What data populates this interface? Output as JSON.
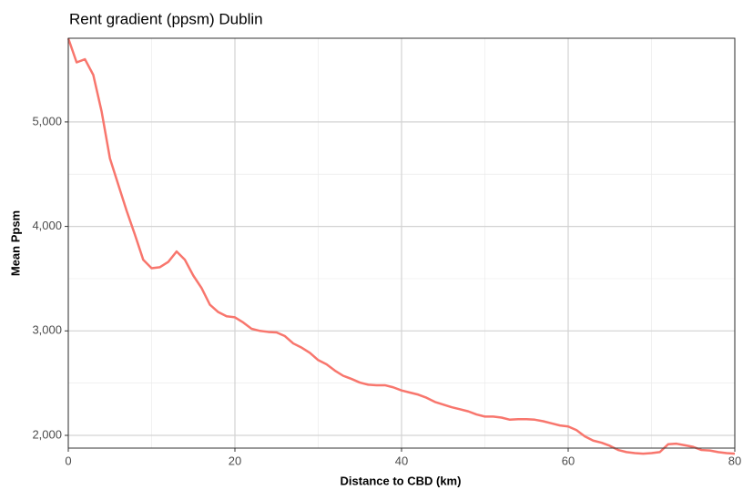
{
  "chart_data": {
    "type": "line",
    "title": "Rent gradient (ppsm) Dublin",
    "x_label": "Distance to CBD (km)",
    "y_label": "Mean Ppsm",
    "x": [
      0,
      1,
      2,
      3,
      4,
      5,
      6,
      7,
      8,
      9,
      10,
      11,
      12,
      13,
      14,
      15,
      16,
      17,
      18,
      19,
      20,
      21,
      22,
      23,
      24,
      25,
      26,
      27,
      28,
      29,
      30,
      31,
      32,
      33,
      34,
      35,
      36,
      37,
      38,
      39,
      40,
      41,
      42,
      43,
      44,
      45,
      46,
      47,
      48,
      49,
      50,
      51,
      52,
      53,
      54,
      55,
      56,
      57,
      58,
      59,
      60,
      61,
      62,
      63,
      64,
      65,
      66,
      67,
      68,
      69,
      70,
      71,
      72,
      73,
      74,
      75,
      76,
      77,
      78,
      79,
      80
    ],
    "series": [
      {
        "name": "Mean Ppsm",
        "color": "#f8766d",
        "values": [
          5800,
          5570,
          5600,
          5450,
          5100,
          4650,
          4400,
          4150,
          3920,
          3680,
          3600,
          3610,
          3660,
          3760,
          3680,
          3530,
          3410,
          3250,
          3180,
          3140,
          3130,
          3080,
          3020,
          3000,
          2990,
          2985,
          2950,
          2880,
          2840,
          2790,
          2720,
          2680,
          2620,
          2570,
          2540,
          2505,
          2485,
          2480,
          2480,
          2460,
          2430,
          2410,
          2390,
          2360,
          2320,
          2295,
          2270,
          2250,
          2230,
          2200,
          2180,
          2180,
          2170,
          2150,
          2155,
          2155,
          2150,
          2135,
          2115,
          2095,
          2085,
          2050,
          1990,
          1950,
          1930,
          1900,
          1860,
          1840,
          1830,
          1825,
          1830,
          1840,
          1915,
          1920,
          1905,
          1890,
          1860,
          1855,
          1840,
          1830,
          1825
        ]
      }
    ],
    "xlim": [
      0,
      80
    ],
    "xticks": [
      0,
      20,
      40,
      60,
      80
    ],
    "ylim": [
      1878,
      5801
    ],
    "yticks": [
      {
        "value": 2000,
        "label": "2,000"
      },
      {
        "value": 3000,
        "label": "3,000"
      },
      {
        "value": 4000,
        "label": "4,000"
      },
      {
        "value": 5000,
        "label": "5,000"
      }
    ],
    "grid": true
  }
}
